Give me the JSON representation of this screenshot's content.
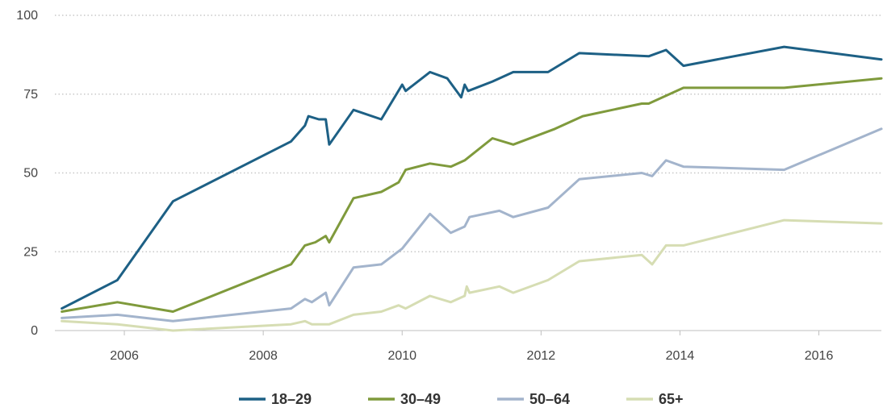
{
  "chart_data": {
    "type": "line",
    "title": "",
    "xlabel": "",
    "ylabel": "",
    "xlim": [
      2005.0,
      2016.9
    ],
    "ylim": [
      0,
      100
    ],
    "x_ticks": [
      2006,
      2008,
      2010,
      2012,
      2014,
      2016
    ],
    "x_tick_labels": [
      "2006",
      "2008",
      "2010",
      "2012",
      "2014",
      "2016"
    ],
    "y_ticks": [
      0,
      25,
      50,
      75,
      100
    ],
    "y_tick_labels": [
      "0",
      "25",
      "50",
      "75",
      "100"
    ],
    "grid": "horizontal dotted",
    "legend_position": "bottom-center",
    "series": [
      {
        "name": "18–29",
        "color": "#1d6085",
        "points": [
          [
            2005.1,
            7
          ],
          [
            2005.9,
            16
          ],
          [
            2006.7,
            41
          ],
          [
            2008.4,
            60
          ],
          [
            2008.6,
            65
          ],
          [
            2008.65,
            68
          ],
          [
            2008.8,
            67
          ],
          [
            2008.9,
            67
          ],
          [
            2008.95,
            59
          ],
          [
            2009.3,
            70
          ],
          [
            2009.7,
            67
          ],
          [
            2010.0,
            78
          ],
          [
            2010.05,
            76
          ],
          [
            2010.4,
            82
          ],
          [
            2010.65,
            80
          ],
          [
            2010.85,
            74
          ],
          [
            2010.9,
            78
          ],
          [
            2010.95,
            76
          ],
          [
            2011.3,
            79
          ],
          [
            2011.6,
            82
          ],
          [
            2012.1,
            82
          ],
          [
            2012.55,
            88
          ],
          [
            2013.55,
            87
          ],
          [
            2013.8,
            89
          ],
          [
            2014.05,
            84
          ],
          [
            2015.5,
            90
          ],
          [
            2016.9,
            86
          ]
        ]
      },
      {
        "name": "30–49",
        "color": "#7f9a3c",
        "points": [
          [
            2005.1,
            6
          ],
          [
            2005.9,
            9
          ],
          [
            2006.7,
            6
          ],
          [
            2008.4,
            21
          ],
          [
            2008.6,
            27
          ],
          [
            2008.75,
            28
          ],
          [
            2008.9,
            30
          ],
          [
            2008.95,
            28
          ],
          [
            2009.3,
            42
          ],
          [
            2009.7,
            44
          ],
          [
            2009.95,
            47
          ],
          [
            2010.05,
            51
          ],
          [
            2010.4,
            53
          ],
          [
            2010.7,
            52
          ],
          [
            2010.9,
            54
          ],
          [
            2011.3,
            61
          ],
          [
            2011.6,
            59
          ],
          [
            2012.2,
            64
          ],
          [
            2012.6,
            68
          ],
          [
            2013.45,
            72
          ],
          [
            2013.55,
            72
          ],
          [
            2014.05,
            77
          ],
          [
            2015.5,
            77
          ],
          [
            2016.9,
            80
          ]
        ]
      },
      {
        "name": "50–64",
        "color": "#a3b4cc",
        "points": [
          [
            2005.1,
            4
          ],
          [
            2005.9,
            5
          ],
          [
            2006.7,
            3
          ],
          [
            2008.4,
            7
          ],
          [
            2008.6,
            10
          ],
          [
            2008.7,
            9
          ],
          [
            2008.9,
            12
          ],
          [
            2008.95,
            8
          ],
          [
            2009.3,
            20
          ],
          [
            2009.7,
            21
          ],
          [
            2010.0,
            26
          ],
          [
            2010.4,
            37
          ],
          [
            2010.7,
            31
          ],
          [
            2010.9,
            33
          ],
          [
            2010.97,
            36
          ],
          [
            2011.4,
            38
          ],
          [
            2011.6,
            36
          ],
          [
            2012.1,
            39
          ],
          [
            2012.55,
            48
          ],
          [
            2013.45,
            50
          ],
          [
            2013.6,
            49
          ],
          [
            2013.8,
            54
          ],
          [
            2014.05,
            52
          ],
          [
            2015.5,
            51
          ],
          [
            2016.9,
            64
          ]
        ]
      },
      {
        "name": "65+",
        "color": "#d6ddb3",
        "points": [
          [
            2005.1,
            3
          ],
          [
            2005.9,
            2
          ],
          [
            2006.7,
            0
          ],
          [
            2008.4,
            2
          ],
          [
            2008.6,
            3
          ],
          [
            2008.7,
            2
          ],
          [
            2008.95,
            2
          ],
          [
            2009.3,
            5
          ],
          [
            2009.7,
            6
          ],
          [
            2009.95,
            8
          ],
          [
            2010.05,
            7
          ],
          [
            2010.4,
            11
          ],
          [
            2010.7,
            9
          ],
          [
            2010.9,
            11
          ],
          [
            2010.93,
            14
          ],
          [
            2010.97,
            12
          ],
          [
            2011.4,
            14
          ],
          [
            2011.6,
            12
          ],
          [
            2012.1,
            16
          ],
          [
            2012.55,
            22
          ],
          [
            2013.45,
            24
          ],
          [
            2013.6,
            21
          ],
          [
            2013.8,
            27
          ],
          [
            2014.05,
            27
          ],
          [
            2015.5,
            35
          ],
          [
            2016.9,
            34
          ]
        ]
      }
    ]
  }
}
